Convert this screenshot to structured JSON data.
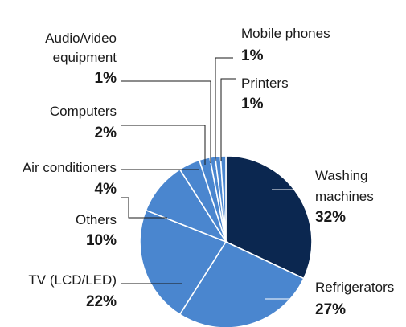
{
  "chart_data": {
    "type": "pie",
    "categories": [
      "Washing machines",
      "Refrigerators",
      "TV (LCD/LED)",
      "Others",
      "Air conditioners",
      "Computers",
      "Audio/video equipment",
      "Mobile phones",
      "Printers"
    ],
    "values": [
      32,
      27,
      22,
      10,
      4,
      2,
      1,
      1,
      1
    ],
    "colors": [
      "#0b2750",
      "#4a86cf",
      "#4a86cf",
      "#4a86cf",
      "#4a86cf",
      "#4a86cf",
      "#4a86cf",
      "#4a86cf",
      "#4a86cf"
    ],
    "slices": [
      {
        "name": "Washing machines",
        "label_lines": [
          "Washing",
          "machines"
        ],
        "percent_label": "32%",
        "value": 32
      },
      {
        "name": "Refrigerators",
        "label_lines": [
          "Refrigerators"
        ],
        "percent_label": "27%",
        "value": 27
      },
      {
        "name": "TV (LCD/LED)",
        "label_lines": [
          "TV (LCD/LED)"
        ],
        "percent_label": "22%",
        "value": 22
      },
      {
        "name": "Others",
        "label_lines": [
          "Others"
        ],
        "percent_label": "10%",
        "value": 10
      },
      {
        "name": "Air conditioners",
        "label_lines": [
          "Air conditioners"
        ],
        "percent_label": "4%",
        "value": 4
      },
      {
        "name": "Computers",
        "label_lines": [
          "Computers"
        ],
        "percent_label": "2%",
        "value": 2
      },
      {
        "name": "Audio/video equipment",
        "label_lines": [
          "Audio/video",
          "equipment"
        ],
        "percent_label": "1%",
        "value": 1
      },
      {
        "name": "Mobile phones",
        "label_lines": [
          "Mobile phones"
        ],
        "percent_label": "1%",
        "value": 1
      },
      {
        "name": "Printers",
        "label_lines": [
          "Printers"
        ],
        "percent_label": "1%",
        "value": 1
      }
    ],
    "start_angle_deg": 0,
    "direction": "clockwise",
    "legend": "none"
  }
}
